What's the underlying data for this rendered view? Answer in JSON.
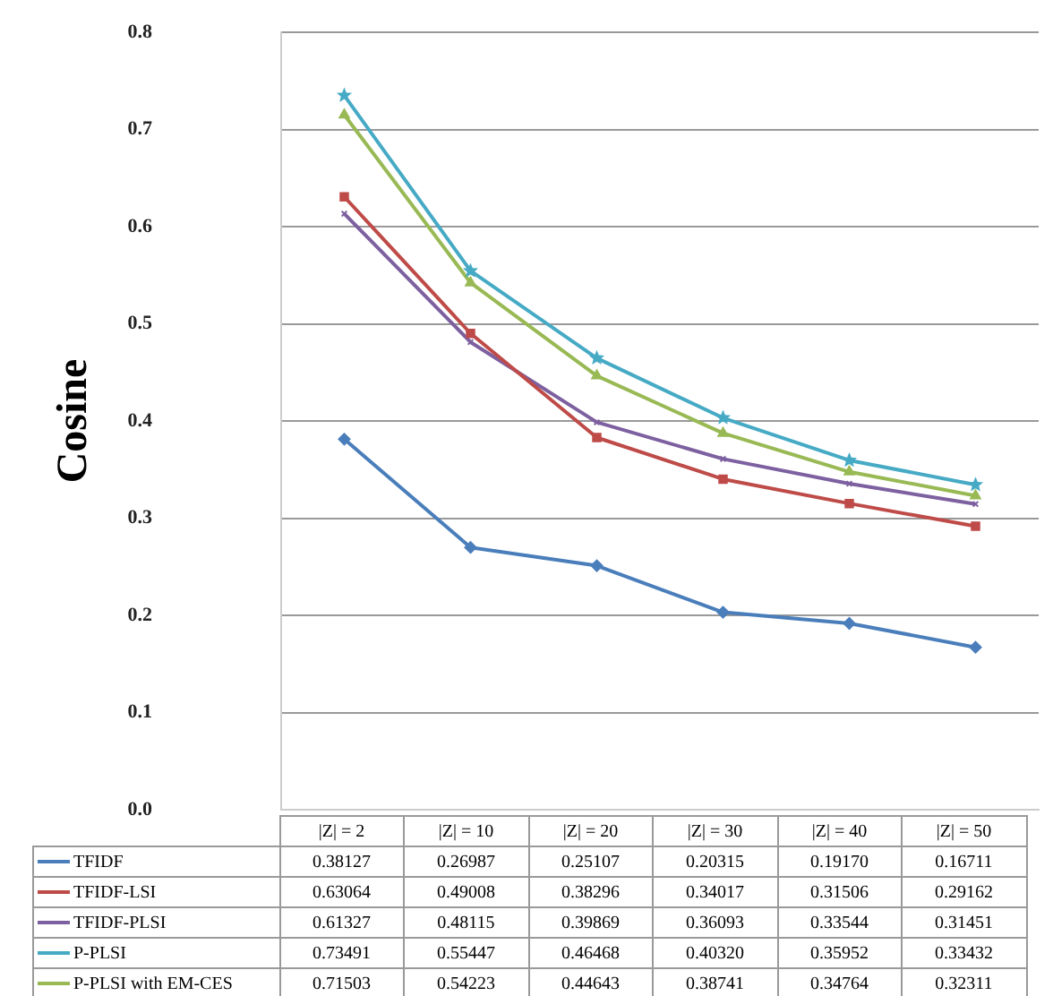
{
  "chart_data": {
    "type": "line",
    "ylabel": "Cosine",
    "categories": [
      "|Z| = 2",
      "|Z| = 10",
      "|Z| = 20",
      "|Z| = 30",
      "|Z| = 40",
      "|Z| = 50"
    ],
    "series": [
      {
        "name": "TFIDF",
        "color": "#4a7ebb",
        "marker": "diamond",
        "values": [
          0.38127,
          0.26987,
          0.25107,
          0.20315,
          0.1917,
          0.16711
        ],
        "value_labels": [
          "0.38127",
          "0.26987",
          "0.25107",
          "0.20315",
          "0.19170",
          "0.16711"
        ]
      },
      {
        "name": "TFIDF-LSI",
        "color": "#be4b48",
        "marker": "square",
        "values": [
          0.63064,
          0.49008,
          0.38296,
          0.34017,
          0.31506,
          0.29162
        ],
        "value_labels": [
          "0.63064",
          "0.49008",
          "0.38296",
          "0.34017",
          "0.31506",
          "0.29162"
        ]
      },
      {
        "name": "TFIDF-PLSI",
        "color": "#7d60a0",
        "marker": "cross",
        "values": [
          0.61327,
          0.48115,
          0.39869,
          0.36093,
          0.33544,
          0.31451
        ],
        "value_labels": [
          "0.61327",
          "0.48115",
          "0.39869",
          "0.36093",
          "0.33544",
          "0.31451"
        ]
      },
      {
        "name": "P-PLSI",
        "color": "#46aac5",
        "marker": "star",
        "values": [
          0.73491,
          0.55447,
          0.46468,
          0.4032,
          0.35952,
          0.33432
        ],
        "value_labels": [
          "0.73491",
          "0.55447",
          "0.46468",
          "0.40320",
          "0.35952",
          "0.33432"
        ]
      },
      {
        "name": "P-PLSI with EM-CES",
        "color": "#98b954",
        "marker": "triangle",
        "values": [
          0.71503,
          0.54223,
          0.44643,
          0.38741,
          0.34764,
          0.32311
        ],
        "value_labels": [
          "0.71503",
          "0.54223",
          "0.44643",
          "0.38741",
          "0.34764",
          "0.32311"
        ]
      }
    ],
    "ylim": [
      0,
      0.8
    ],
    "yticks": [
      {
        "value": 0,
        "label": "0.0"
      },
      {
        "value": 0.1,
        "label": "0.1"
      },
      {
        "value": 0.2,
        "label": "0.2"
      },
      {
        "value": 0.3,
        "label": "0.3"
      },
      {
        "value": 0.4,
        "label": "0.4"
      },
      {
        "value": 0.5,
        "label": "0.5"
      },
      {
        "value": 0.6,
        "label": "0.6"
      },
      {
        "value": 0.7,
        "label": "0.7"
      },
      {
        "value": 0.8,
        "label": "0.8"
      }
    ],
    "grid": "y",
    "legend": "bottom",
    "line_style": "solid"
  }
}
